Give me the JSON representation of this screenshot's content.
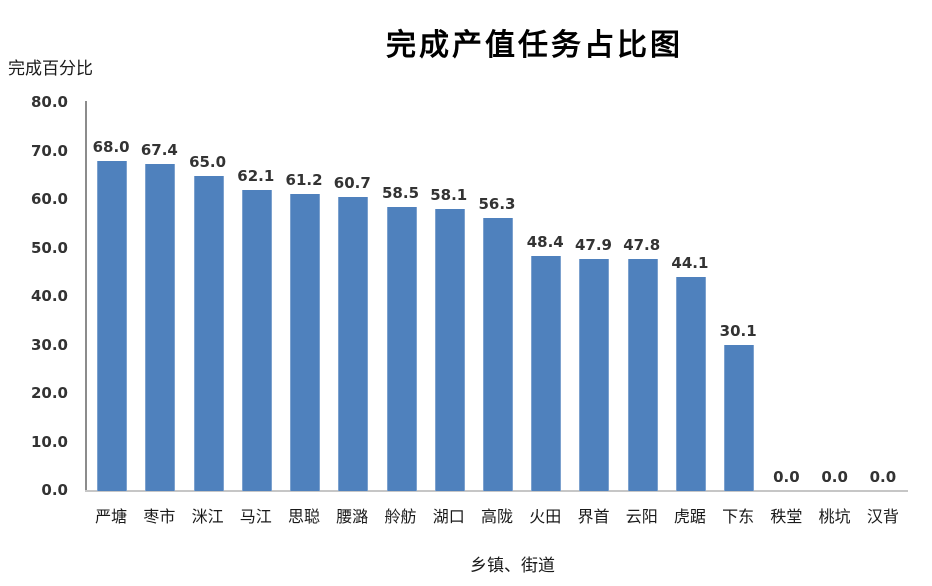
{
  "chart_data": {
    "type": "bar",
    "title": "完成产值任务占比图",
    "ylabel": "完成百分比",
    "xlabel": "乡镇、街道",
    "categories": [
      "严塘",
      "枣市",
      "洣江",
      "马江",
      "思聪",
      "腰潞",
      "舲舫",
      "湖口",
      "高陇",
      "火田",
      "界首",
      "云阳",
      "虎踞",
      "下东",
      "秩堂",
      "桃坑",
      "汉背"
    ],
    "values": [
      68.0,
      67.4,
      65.0,
      62.1,
      61.2,
      60.7,
      58.5,
      58.1,
      56.3,
      48.4,
      47.9,
      47.8,
      44.1,
      30.1,
      0.0,
      0.0,
      0.0
    ],
    "value_labels": [
      "68.0",
      "67.4",
      "65.0",
      "62.1",
      "61.2",
      "60.7",
      "58.5",
      "58.1",
      "56.3",
      "48.4",
      "47.9",
      "47.8",
      "44.1",
      "30.1",
      "0.0",
      "0.0",
      "0.0"
    ],
    "ylim": [
      0,
      80
    ],
    "ytick_step": 10,
    "ytick_labels": [
      "0.0",
      "10.0",
      "20.0",
      "30.0",
      "40.0",
      "50.0",
      "60.0",
      "70.0",
      "80.0"
    ],
    "grid": false,
    "legend": "none",
    "bar_color": "#4F81BD"
  },
  "colors": {
    "bar": "#4F81BD",
    "y_axis_line": "#8C8C8C",
    "x_axis_line": "#C6C6C6",
    "label_text": "#333333",
    "title_text": "#000000"
  }
}
